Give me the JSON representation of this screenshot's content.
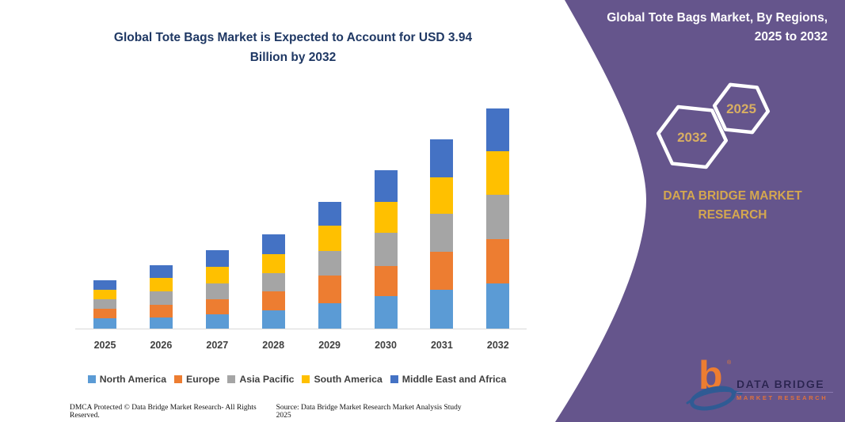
{
  "title": {
    "line1": "Global Tote Bags Market is Expected to Account for USD 3.94",
    "line2": "Billion by 2032",
    "color": "#1F3864"
  },
  "chart_data": {
    "type": "bar",
    "stacked": true,
    "unit": "USD Billion",
    "categories": [
      "2025",
      "2026",
      "2027",
      "2028",
      "2029",
      "2030",
      "2031",
      "2032"
    ],
    "series": [
      {
        "name": "North America",
        "color": "#5B9BD5",
        "values": [
          0.18,
          0.2,
          0.26,
          0.33,
          0.45,
          0.58,
          0.69,
          0.81
        ]
      },
      {
        "name": "Europe",
        "color": "#ED7D31",
        "values": [
          0.17,
          0.23,
          0.27,
          0.34,
          0.5,
          0.54,
          0.68,
          0.79
        ]
      },
      {
        "name": "Asia Pacific",
        "color": "#A5A5A5",
        "values": [
          0.18,
          0.24,
          0.28,
          0.32,
          0.44,
          0.59,
          0.68,
          0.79
        ]
      },
      {
        "name": "South America",
        "color": "#FFC000",
        "values": [
          0.17,
          0.24,
          0.3,
          0.34,
          0.45,
          0.56,
          0.66,
          0.78
        ]
      },
      {
        "name": "Middle East and Africa",
        "color": "#4472C4",
        "values": [
          0.17,
          0.23,
          0.29,
          0.35,
          0.43,
          0.57,
          0.67,
          0.77
        ]
      }
    ],
    "totals": [
      0.87,
      1.14,
      1.4,
      1.68,
      2.27,
      2.84,
      3.38,
      3.94
    ],
    "ylim": [
      0,
      3.94
    ],
    "grid": false,
    "legend_position": "bottom",
    "axis_line_color": "#D9D9D9",
    "tick_label_color": "#3F3F3F"
  },
  "side_panel": {
    "background": "#65558C",
    "heading_line1": "Global Tote Bags Market, By Regions,",
    "heading_line2": "2025 to 2032",
    "heading_color": "#FFFFFF",
    "hexagons": [
      {
        "label": "2032"
      },
      {
        "label": "2025"
      }
    ],
    "hexagon_outline_color": "#FFFFFF",
    "hexagon_label_color": "#D8AE63",
    "brand_line1": "DATA BRIDGE MARKET",
    "brand_line2": "RESEARCH",
    "brand_color": "#D4A74F"
  },
  "logo": {
    "glyph": "b",
    "registered_mark": "®",
    "name": "DATA BRIDGE",
    "subname": "MARKET RESEARCH",
    "glyph_color": "#ED7D31",
    "swoosh_color": "#2F5B94",
    "name_color": "#2B2450",
    "subname_color": "#E0713C"
  },
  "footer": {
    "left": "DMCA Protected © Data Bridge Market Research-  All Rights Reserved.",
    "right": "Source: Data Bridge Market Research  Market Analysis Study 2025"
  }
}
